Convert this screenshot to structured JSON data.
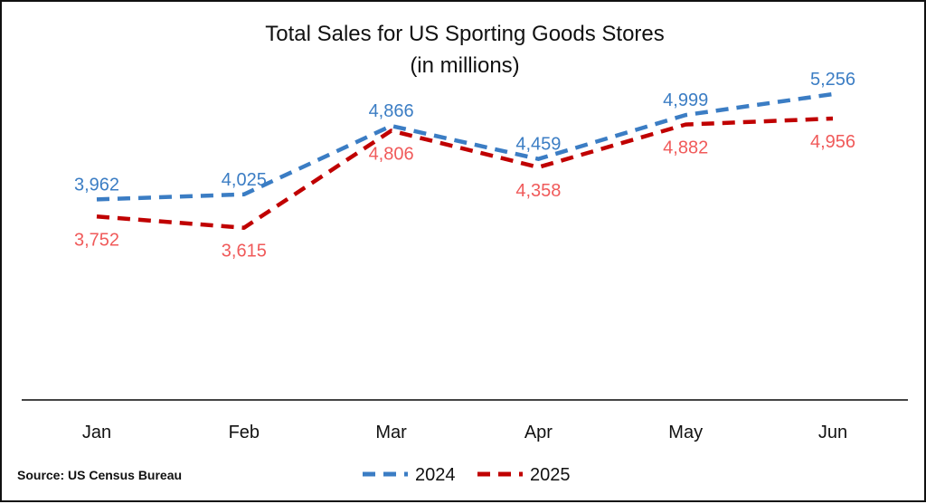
{
  "chart_data": {
    "type": "line",
    "title": "Total Sales for US Sporting Goods Stores",
    "subtitle": "(in millions)",
    "categories": [
      "Jan",
      "Feb",
      "Mar",
      "Apr",
      "May",
      "Jun"
    ],
    "series": [
      {
        "name": "2024",
        "values": [
          3962,
          4025,
          4866,
          4459,
          4999,
          5256
        ],
        "labels": [
          "3,962",
          "4,025",
          "4,866",
          "4,459",
          "4,999",
          "5,256"
        ],
        "color": "#3B7DC4",
        "label_color": "#3B7DC4",
        "line_style": "dashed"
      },
      {
        "name": "2025",
        "values": [
          3752,
          3615,
          4806,
          4358,
          4882,
          4956
        ],
        "labels": [
          "3,752",
          "3,615",
          "4,806",
          "4,358",
          "4,882",
          "4,956"
        ],
        "color": "#C00000",
        "label_color": "#F05A5A",
        "line_style": "dashed"
      }
    ],
    "ylim": [
      1500,
      6000
    ],
    "grid": false,
    "legend_position": "bottom-center",
    "source": "Source: US Census Bureau"
  }
}
